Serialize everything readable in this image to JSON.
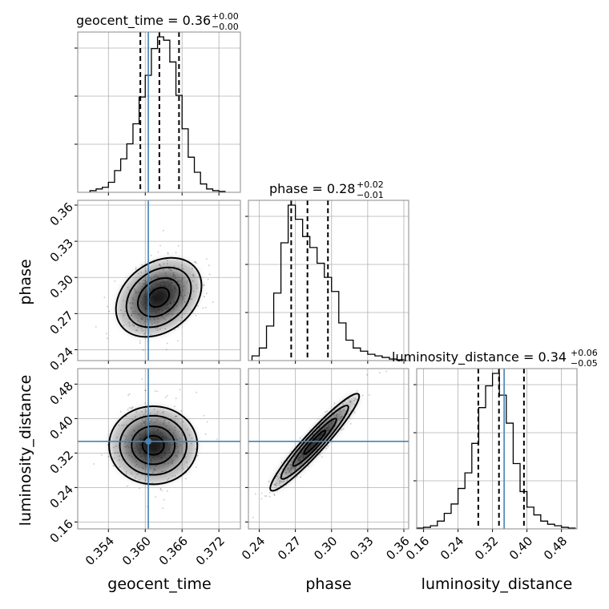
{
  "chart_data": [
    {
      "type": "histogram",
      "param": "geocent_time",
      "title": "geocent_time = 0.36",
      "title_sup": "+0.00",
      "title_sub": "−0.00",
      "x": [
        0.3515,
        0.3525,
        0.3535,
        0.3545,
        0.3555,
        0.3565,
        0.3575,
        0.3585,
        0.3595,
        0.3605,
        0.3615,
        0.3625,
        0.3635,
        0.3645,
        0.3655,
        0.3665,
        0.3675,
        0.3685,
        0.3695,
        0.3705,
        0.3715,
        0.3725
      ],
      "values": [
        0.01,
        0.02,
        0.03,
        0.06,
        0.13,
        0.2,
        0.29,
        0.41,
        0.57,
        0.7,
        0.86,
        0.93,
        0.91,
        0.78,
        0.58,
        0.38,
        0.21,
        0.12,
        0.05,
        0.02,
        0.01,
        0.005
      ],
      "quantiles": [
        0.3592,
        0.3623,
        0.3655
      ],
      "truth": 0.3605
    },
    {
      "type": "histogram",
      "param": "phase",
      "title": "phase = 0.28",
      "title_sup": "+0.02",
      "title_sub": "−0.01",
      "x": [
        0.237,
        0.243,
        0.249,
        0.255,
        0.261,
        0.267,
        0.273,
        0.279,
        0.285,
        0.291,
        0.297,
        0.303,
        0.309,
        0.315,
        0.321,
        0.327,
        0.333,
        0.339,
        0.345,
        0.351,
        0.357
      ],
      "values": [
        0.03,
        0.08,
        0.22,
        0.43,
        0.75,
        0.99,
        0.9,
        0.79,
        0.72,
        0.62,
        0.53,
        0.44,
        0.24,
        0.13,
        0.08,
        0.06,
        0.04,
        0.03,
        0.02,
        0.01,
        0.005
      ],
      "quantiles": [
        0.2665,
        0.28,
        0.297
      ]
    },
    {
      "type": "histogram",
      "param": "luminosity_distance",
      "title": "luminosity_distance = 0.34",
      "title_sup": "+0.06",
      "title_sub": "−0.05",
      "x": [
        0.152,
        0.168,
        0.184,
        0.2,
        0.216,
        0.232,
        0.248,
        0.264,
        0.28,
        0.296,
        0.312,
        0.328,
        0.344,
        0.36,
        0.376,
        0.392,
        0.408,
        0.424,
        0.44,
        0.456,
        0.472,
        0.488,
        0.504
      ],
      "values": [
        0.005,
        0.01,
        0.02,
        0.05,
        0.1,
        0.16,
        0.26,
        0.36,
        0.55,
        0.78,
        0.92,
        1.0,
        0.86,
        0.68,
        0.42,
        0.24,
        0.14,
        0.09,
        0.05,
        0.03,
        0.02,
        0.01,
        0.005
      ],
      "quantiles": [
        0.287,
        0.335,
        0.393
      ],
      "truth": 0.347
    },
    {
      "type": "scatter",
      "x_param": "geocent_time",
      "y_param": "phase",
      "ylabel": "phase",
      "center": [
        0.3622,
        0.2835
      ],
      "spread": [
        0.0034,
        0.016
      ],
      "correlation": 0.3,
      "truth_x": 0.3605
    },
    {
      "type": "scatter",
      "x_param": "geocent_time",
      "y_param": "luminosity_distance",
      "xlabel": "geocent_time",
      "ylabel": "luminosity_distance",
      "center": [
        0.3613,
        0.338
      ],
      "spread": [
        0.0031,
        0.05
      ],
      "correlation": 0.0,
      "truth_x": 0.3605,
      "truth_y": 0.347
    },
    {
      "type": "scatter",
      "x_param": "phase",
      "y_param": "luminosity_distance",
      "xlabel": "phase",
      "center": [
        0.286,
        0.345
      ],
      "spread": [
        0.018,
        0.055
      ],
      "correlation": 0.95,
      "truth_y": 0.347
    }
  ],
  "axes": {
    "geocent_time": {
      "range": [
        0.349,
        0.3755
      ],
      "ticks": [
        "0.354",
        "0.360",
        "0.366",
        "0.372"
      ]
    },
    "phase": {
      "range": [
        0.231,
        0.364
      ],
      "ticks_x": [
        "0.24",
        "0.27",
        "0.30",
        "0.33",
        "0.36"
      ],
      "ticks_y": [
        "0.24",
        "0.27",
        "0.30",
        "0.33",
        "0.36"
      ]
    },
    "luminosity_distance": {
      "range": [
        0.144,
        0.516
      ],
      "ticks_x": [
        "0.16",
        "0.24",
        "0.32",
        "0.40",
        "0.48"
      ],
      "ticks_y": [
        "0.16",
        "0.24",
        "0.32",
        "0.40",
        "0.48"
      ]
    }
  },
  "colors": {
    "truth": "#4682b4",
    "hist": "#000000",
    "grid": "#b0b0b0",
    "frame": "#888888"
  }
}
